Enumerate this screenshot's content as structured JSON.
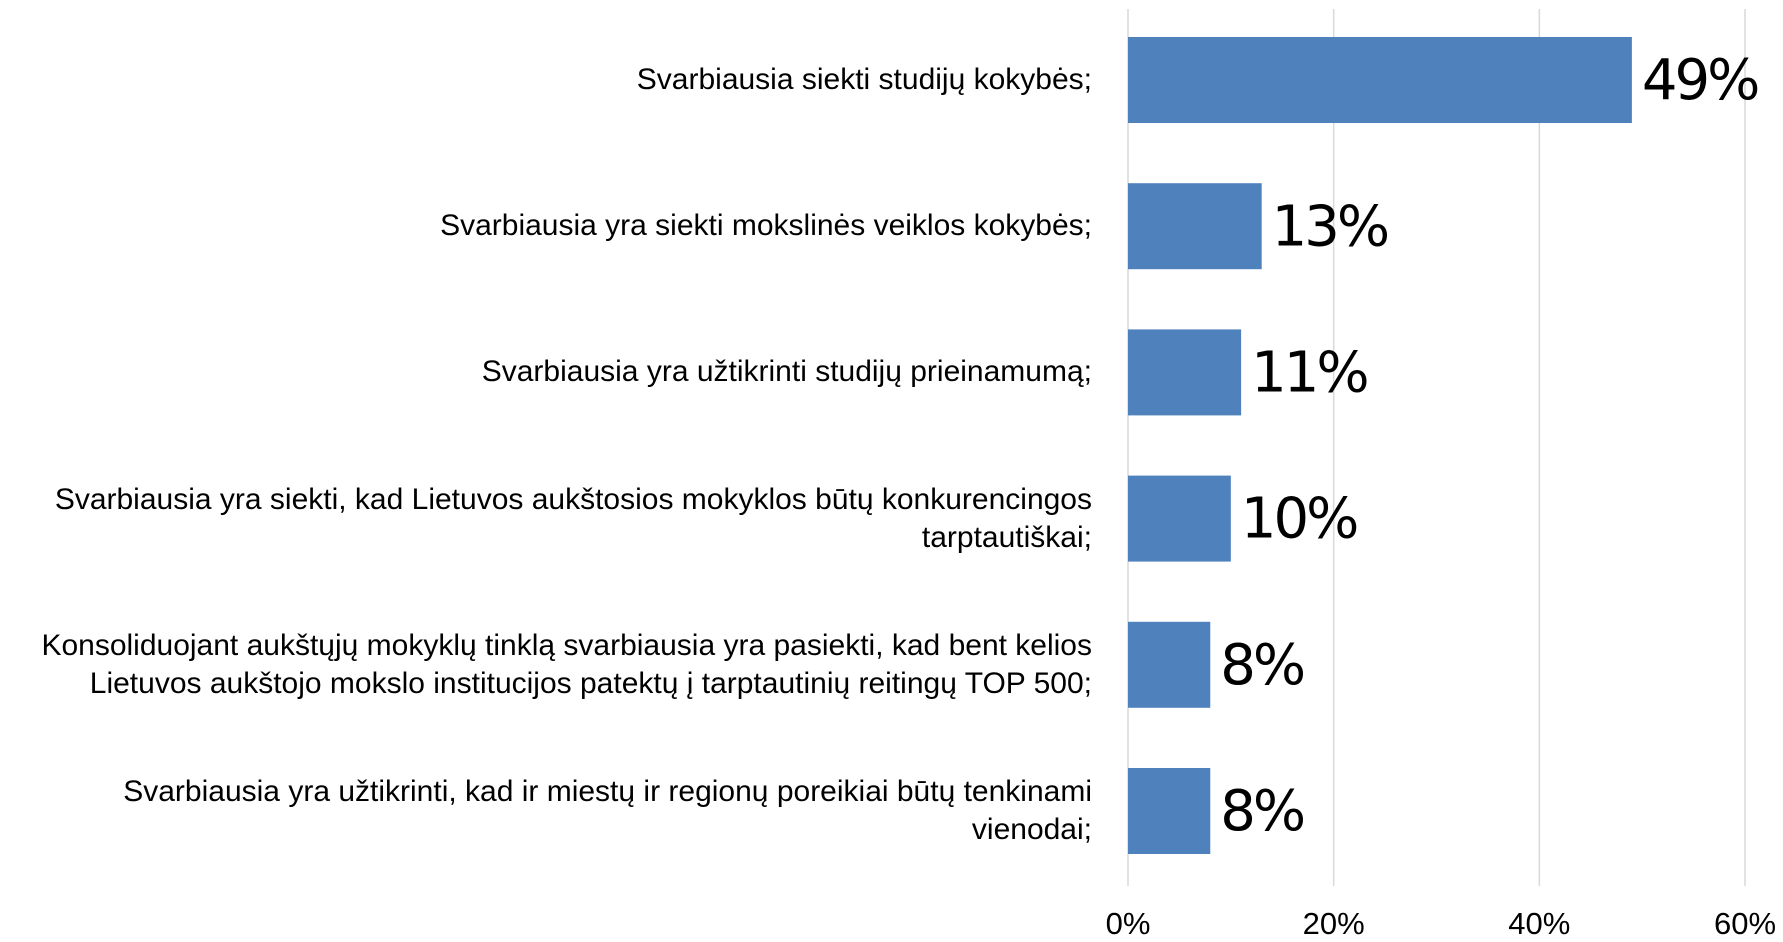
{
  "chart_data": {
    "type": "barh",
    "categories": [
      "Svarbiausia siekti studijų kokybės;",
      "Svarbiausia yra siekti mokslinės veiklos kokybės;",
      "Svarbiausia yra užtikrinti studijų prieinamumą;",
      "Svarbiausia yra siekti, kad Lietuvos aukštosios mokyklos būtų konkurencingos tarptautiškai;",
      "Konsoliduojant aukštųjų mokyklų tinklą svarbiausia yra pasiekti, kad bent kelios Lietuvos aukštojo mokslo institucijos patektų į tarptautinių reitingų TOP 500;",
      "Svarbiausia yra užtikrinti, kad ir miestų ir regionų poreikiai būtų tenkinami vienodai;"
    ],
    "values": [
      49,
      13,
      11,
      10,
      8,
      8
    ],
    "value_labels": [
      "49%",
      "13%",
      "11%",
      "10%",
      "8%",
      "8%"
    ],
    "color": "#4f81bd",
    "xlim": [
      0,
      60
    ],
    "xticks": [
      {
        "value": 0,
        "label": "0%"
      },
      {
        "value": 20,
        "label": "20%"
      },
      {
        "value": 40,
        "label": "40%"
      },
      {
        "value": 60,
        "label": "60%"
      }
    ],
    "grid": true
  }
}
